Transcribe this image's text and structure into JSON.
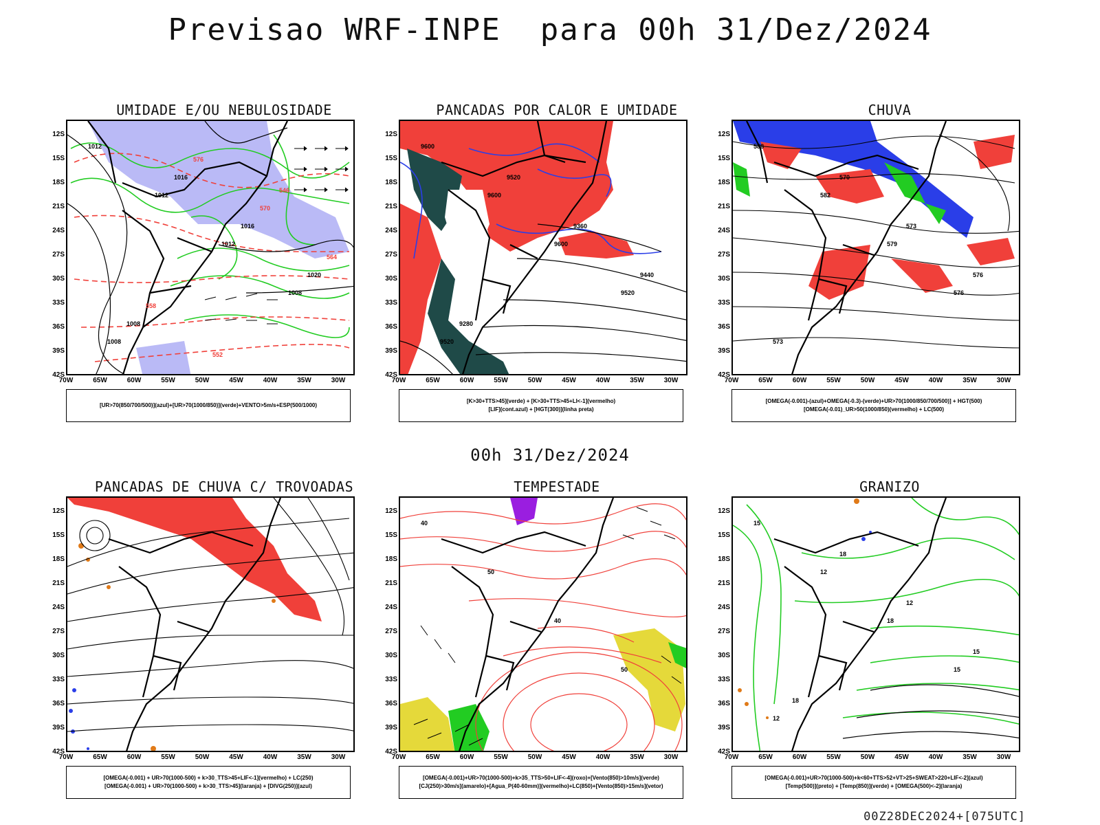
{
  "header": {
    "title": "Previsao WRF-INPE  para 00h 31/Dez/2024"
  },
  "mid_title": "00h 31/Dez/2024",
  "footer": {
    "stamp": "00Z28DEC2024+[075UTC]"
  },
  "axes": {
    "lat_labels": [
      "12S",
      "15S",
      "18S",
      "21S",
      "24S",
      "27S",
      "30S",
      "33S",
      "36S",
      "39S",
      "42S"
    ],
    "lon_labels": [
      "70W",
      "65W",
      "60W",
      "55W",
      "50W",
      "45W",
      "40W",
      "35W",
      "30W"
    ]
  },
  "colors": {
    "red": "#f0403a",
    "blue": "#2a3ee8",
    "green": "#22cc22",
    "lavender": "#b3b3f5",
    "darkteal": "#1f4a48",
    "yellow": "#e5d93a",
    "orange": "#e07a18",
    "purple": "#9a1ee0",
    "black": "#000000"
  },
  "panels": [
    {
      "title": "UMIDADE E/OU NEBULOSIDADE",
      "legend": [
        "[UR>70(850/700/500)](azul)+[UR>70(1000/850)](verde)+VENTO>5m/s+ESP(500/1000)"
      ],
      "contour_labels": [
        "1012",
        "1012",
        "1012",
        "1008",
        "1008",
        "1016",
        "1016",
        "1020",
        "1008",
        "576",
        "570",
        "564",
        "558",
        "552",
        "546"
      ]
    },
    {
      "title": "PANCADAS POR CALOR E UMIDADE",
      "legend": [
        "[K>30+TTS>45](verde) + [K>30+TTS>45+LI<-1](vermelho)",
        "[LIF](cont.azul) + [HGT(300)](linha preta)"
      ],
      "contour_labels": [
        "9600",
        "9600",
        "9600",
        "9520",
        "9520",
        "9520",
        "9360",
        "9440",
        "9280"
      ]
    },
    {
      "title": "CHUVA",
      "legend": [
        "[OMEGA(-0.001)-(azul)+OMEGA(-0.3)-(verde)+UR>70(1000/850/700/500)] + HGT(500)",
        "[OMEGA(-0.01)_UR>50(1000/850)(vermelho) + LC(500)"
      ],
      "contour_labels": [
        "588",
        "582",
        "579",
        "576",
        "573",
        "570",
        "573",
        "576"
      ]
    },
    {
      "title": "PANCADAS DE CHUVA C/ TROVOADAS",
      "legend": [
        "[OMEGA(-0.001) + UR>70(1000-500) + k>30_TTS>45+LIF<-1](vermelho) + LC(250)",
        "[OMEGA(-0.001) + UR>70(1000-500) + k>30_TTS>45](laranja) + [DIVG(250)](azul)"
      ],
      "contour_labels": []
    },
    {
      "title": "TEMPESTADE",
      "legend": [
        "[OMEGA(-0.001)+UR>70(1000-500)+k>35_TTS>50+LIF<-4](roxo)+[Vento(850)>10m/s](verde)",
        "[CJ(250)>30m/s](amarelo)+[Agua_P(40-60mm)](vermelho)+LC(850)+[Vento(850)>15m/s](vetor)"
      ],
      "contour_labels": [
        "40",
        "50",
        "40",
        "50"
      ]
    },
    {
      "title": "GRANIZO",
      "legend": [
        "[OMEGA(-0.001)+UR>70(1000-500)+k<60+TTS>52+VT>25+SWEAT>220+LIF<-2](azul)",
        "[Temp(500)](preto) + [Temp(850)](verde) + [OMEGA(500)<-2](laranja)"
      ],
      "contour_labels": [
        "15",
        "12",
        "18",
        "15",
        "12",
        "18",
        "12",
        "15",
        "18"
      ]
    }
  ]
}
